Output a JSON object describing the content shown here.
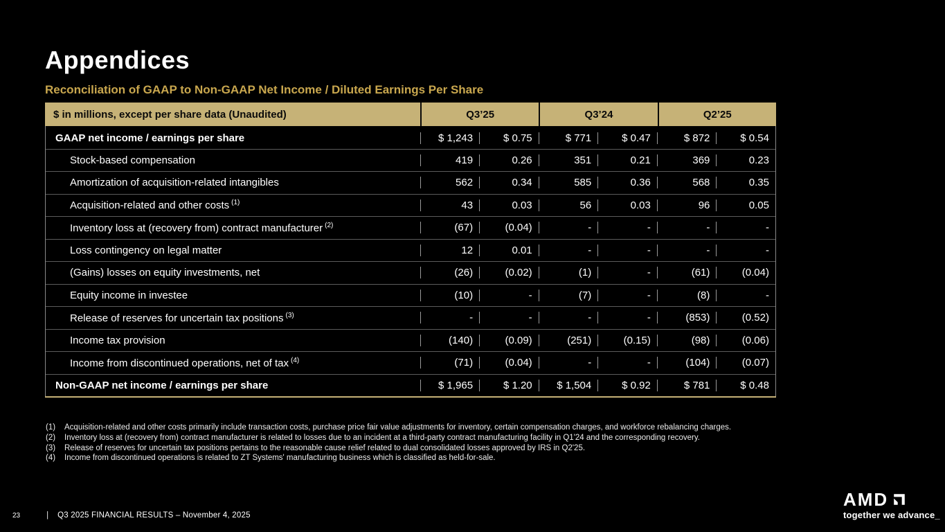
{
  "colors": {
    "background": "#000000",
    "table_header_bg": "#C6B277",
    "subtitle_gold": "#C9A74E",
    "text": "#FFFFFF"
  },
  "slide": {
    "title": "Appendices",
    "subtitle": "Reconciliation of GAAP to Non-GAAP Net Income / Diluted Earnings Per Share"
  },
  "table": {
    "corner_label": "$ in millions, except per share data (Unaudited)",
    "period_headers": [
      "Q3’25",
      "Q3’24",
      "Q2’25"
    ],
    "rows": [
      {
        "label": "GAAP net income / earnings per share",
        "sup": "",
        "bold": true,
        "indent": false,
        "values": [
          "$ 1,243",
          "$ 0.75",
          "$ 771",
          "$ 0.47",
          "$ 872",
          "$ 0.54"
        ]
      },
      {
        "label": "Stock-based compensation",
        "sup": "",
        "bold": false,
        "indent": true,
        "values": [
          "419",
          "0.26",
          "351",
          "0.21",
          "369",
          "0.23"
        ]
      },
      {
        "label": "Amortization of acquisition-related intangibles",
        "sup": "",
        "bold": false,
        "indent": true,
        "values": [
          "562",
          "0.34",
          "585",
          "0.36",
          "568",
          "0.35"
        ]
      },
      {
        "label": "Acquisition-related and other costs",
        "sup": "(1)",
        "bold": false,
        "indent": true,
        "values": [
          "43",
          "0.03",
          "56",
          "0.03",
          "96",
          "0.05"
        ]
      },
      {
        "label": "Inventory loss at (recovery from) contract manufacturer",
        "sup": "(2)",
        "bold": false,
        "indent": true,
        "values": [
          "(67)",
          "(0.04)",
          "-",
          "-",
          "-",
          "-"
        ]
      },
      {
        "label": "Loss contingency on legal matter",
        "sup": "",
        "bold": false,
        "indent": true,
        "values": [
          "12",
          "0.01",
          "-",
          "-",
          "-",
          "-"
        ]
      },
      {
        "label": "(Gains) losses on equity investments, net",
        "sup": "",
        "bold": false,
        "indent": true,
        "values": [
          "(26)",
          "(0.02)",
          "(1)",
          "-",
          "(61)",
          "(0.04)"
        ]
      },
      {
        "label": "Equity income in investee",
        "sup": "",
        "bold": false,
        "indent": true,
        "values": [
          "(10)",
          "-",
          "(7)",
          "-",
          "(8)",
          "-"
        ]
      },
      {
        "label": "Release of reserves for uncertain tax positions",
        "sup": "(3)",
        "bold": false,
        "indent": true,
        "values": [
          "-",
          "-",
          "-",
          "-",
          "(853)",
          "(0.52)"
        ]
      },
      {
        "label": "Income tax provision",
        "sup": "",
        "bold": false,
        "indent": true,
        "values": [
          "(140)",
          "(0.09)",
          "(251)",
          "(0.15)",
          "(98)",
          "(0.06)"
        ]
      },
      {
        "label": "Income from discontinued operations, net of tax",
        "sup": "(4)",
        "bold": false,
        "indent": true,
        "values": [
          "(71)",
          "(0.04)",
          "-",
          "-",
          "(104)",
          "(0.07)"
        ]
      },
      {
        "label": "Non-GAAP net income / earnings per share",
        "sup": "",
        "bold": true,
        "indent": false,
        "values": [
          "$ 1,965",
          "$ 1.20",
          "$ 1,504",
          "$ 0.92",
          "$ 781",
          "$ 0.48"
        ]
      }
    ]
  },
  "footnotes": [
    {
      "num": "(1)",
      "text": "Acquisition-related and other costs primarily include transaction costs, purchase price fair value adjustments for inventory, certain compensation charges, and workforce rebalancing charges."
    },
    {
      "num": "(2)",
      "text": "Inventory loss at (recovery from) contract manufacturer is related to losses due to an incident at a third-party contract manufacturing facility in Q1'24 and the corresponding recovery."
    },
    {
      "num": "(3)",
      "text": "Release of reserves for uncertain tax positions pertains to the reasonable cause relief related to dual consolidated losses approved by IRS in Q2'25."
    },
    {
      "num": "(4)",
      "text": "Income from discontinued operations is related to ZT Systems' manufacturing business which is classified as held-for-sale."
    }
  ],
  "footer": {
    "page_number": "23",
    "separator": "|",
    "text": "Q3 2025 FINANCIAL RESULTS – November 4, 2025"
  },
  "logo": {
    "brand": "AMD",
    "tagline": "together we advance_"
  }
}
